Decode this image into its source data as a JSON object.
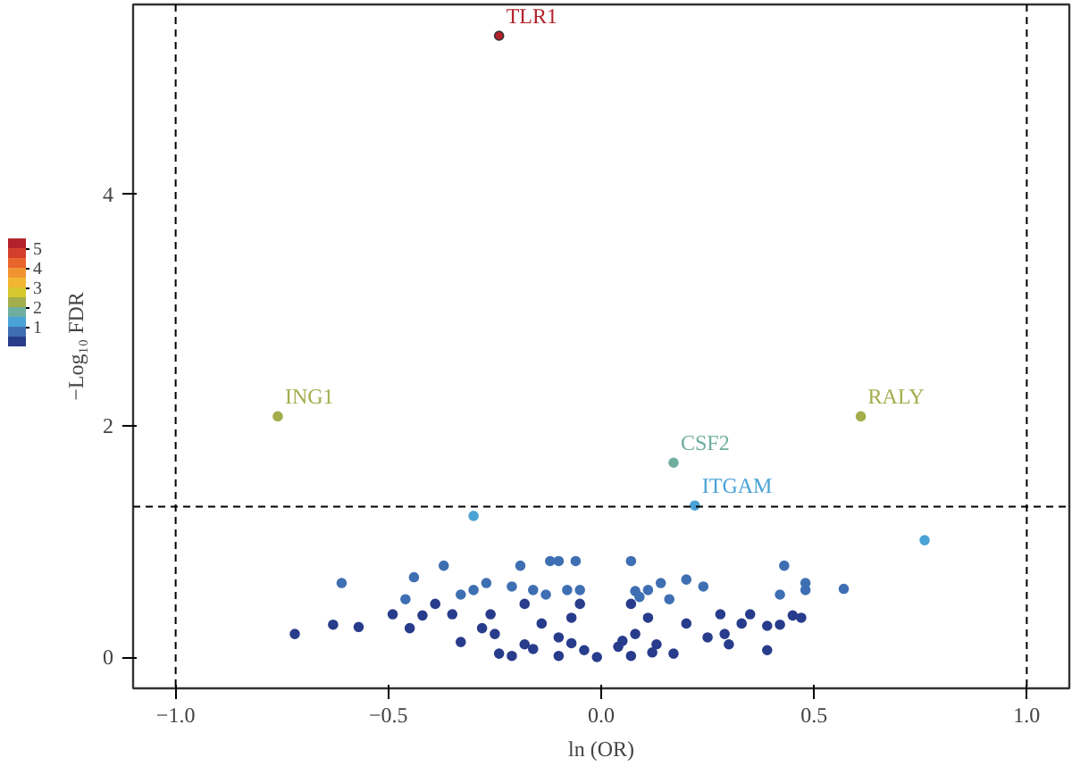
{
  "chart_data": {
    "type": "scatter",
    "xlabel": "ln (OR)",
    "ylabel": "−Log₁₀ FDR",
    "xlim": [
      -1.1,
      1.1
    ],
    "ylim": [
      -0.27,
      5.64
    ],
    "xticks": [
      {
        "value": -1,
        "label": "−1.0"
      },
      {
        "value": -0.5,
        "label": "−0.5"
      },
      {
        "value": 0,
        "label": "0.0"
      },
      {
        "value": 0.5,
        "label": "0.5"
      },
      {
        "value": 1,
        "label": "1.0"
      }
    ],
    "yticks": [
      0,
      2,
      4
    ],
    "grid": false,
    "marker": "circle",
    "clim": [
      0,
      5.5
    ],
    "cticks": [
      1,
      2,
      3,
      4,
      5
    ],
    "ref_lines": [
      {
        "axis": "x",
        "value": -1,
        "line_style": "dashed"
      },
      {
        "axis": "x",
        "value": 1,
        "line_style": "dashed"
      },
      {
        "axis": "y",
        "value": 1.3,
        "line_style": "dashed"
      }
    ],
    "annotations": [
      {
        "text": "TLR1",
        "x": -0.24,
        "y": 5.37
      },
      {
        "text": "ING1",
        "x": -0.76,
        "y": 2.08
      },
      {
        "text": "RALY",
        "x": 0.61,
        "y": 2.08
      },
      {
        "text": "CSF2",
        "x": 0.17,
        "y": 1.68
      },
      {
        "text": "ITGAM",
        "x": 0.22,
        "y": 1.31
      }
    ],
    "series": [
      {
        "x": [
          -0.24,
          -0.76,
          0.61,
          0.17,
          0.22,
          -0.3,
          0.76,
          -0.61,
          -0.44,
          -0.37,
          -0.19,
          -0.12,
          -0.1,
          -0.06,
          0.07,
          0.43,
          0.14,
          0.2,
          0.24,
          0.48,
          0.48,
          0.57,
          0.42,
          -0.27,
          -0.3,
          -0.33,
          -0.21,
          -0.16,
          -0.13,
          -0.08,
          -0.05,
          0.09,
          0.11,
          0.16,
          -0.72,
          -0.63,
          -0.57,
          -0.49,
          -0.46,
          -0.45,
          -0.42,
          -0.39,
          -0.35,
          -0.33,
          -0.28,
          -0.25,
          -0.24,
          -0.18,
          -0.14,
          -0.1,
          -0.04,
          -0.01,
          0.04,
          0.08,
          0.11,
          0.13,
          0.17,
          0.2,
          0.25,
          0.28,
          0.29,
          0.33,
          0.35,
          0.39,
          0.39,
          0.42,
          0.45,
          0.47,
          0.3,
          -0.07,
          -0.05,
          -0.18,
          -0.26,
          0.07,
          0.08,
          -0.21,
          -0.1,
          0.07,
          -0.16,
          0.12,
          -0.07,
          0.05
        ],
        "values": [
          5.37,
          2.08,
          2.08,
          1.68,
          1.31,
          1.22,
          1.01,
          0.64,
          0.69,
          0.79,
          0.79,
          0.83,
          0.83,
          0.83,
          0.83,
          0.79,
          0.64,
          0.67,
          0.61,
          0.64,
          0.58,
          0.59,
          0.54,
          0.64,
          0.58,
          0.54,
          0.61,
          0.58,
          0.54,
          0.58,
          0.58,
          0.52,
          0.58,
          0.5,
          0.2,
          0.28,
          0.26,
          0.37,
          0.5,
          0.25,
          0.36,
          0.46,
          0.37,
          0.13,
          0.25,
          0.2,
          0.03,
          0.11,
          0.29,
          0.17,
          0.06,
          0.0,
          0.09,
          0.2,
          0.34,
          0.11,
          0.03,
          0.29,
          0.17,
          0.37,
          0.2,
          0.29,
          0.37,
          0.27,
          0.06,
          0.28,
          0.36,
          0.34,
          0.11,
          0.34,
          0.46,
          0.46,
          0.37,
          0.46,
          0.57,
          0.01,
          0.01,
          0.01,
          0.07,
          0.04,
          0.12,
          0.14
        ],
        "cvalues": [
          5.37,
          2.08,
          2.08,
          1.68,
          1.31,
          1.22,
          1.01,
          0.64,
          0.69,
          0.79,
          0.79,
          0.83,
          0.83,
          0.83,
          0.83,
          0.79,
          0.64,
          0.67,
          0.61,
          0.64,
          0.58,
          0.59,
          0.54,
          0.64,
          0.58,
          0.54,
          0.61,
          0.58,
          0.54,
          0.58,
          0.58,
          0.52,
          0.58,
          0.5,
          0.2,
          0.28,
          0.26,
          0.37,
          0.5,
          0.25,
          0.36,
          0.46,
          0.37,
          0.13,
          0.25,
          0.2,
          0.03,
          0.11,
          0.29,
          0.17,
          0.06,
          0.0,
          0.09,
          0.2,
          0.34,
          0.11,
          0.03,
          0.29,
          0.17,
          0.37,
          0.2,
          0.29,
          0.37,
          0.27,
          0.06,
          0.28,
          0.36,
          0.34,
          0.11,
          0.34,
          0.46,
          0.46,
          0.37,
          0.46,
          0.57,
          0.01,
          0.01,
          0.01,
          0.07,
          0.04,
          0.12,
          0.14
        ]
      }
    ]
  }
}
